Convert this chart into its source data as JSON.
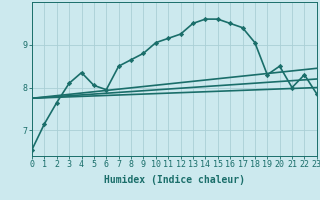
{
  "xlabel": "Humidex (Indice chaleur)",
  "background_color": "#cce9ee",
  "grid_color": "#aacfd6",
  "line_color": "#1a6e6a",
  "x_ticks": [
    0,
    1,
    2,
    3,
    4,
    5,
    6,
    7,
    8,
    9,
    10,
    11,
    12,
    13,
    14,
    15,
    16,
    17,
    18,
    19,
    20,
    21,
    22,
    23
  ],
  "y_ticks": [
    7,
    8,
    9
  ],
  "ylim": [
    6.4,
    10.0
  ],
  "xlim": [
    0,
    23
  ],
  "series": [
    {
      "x": [
        0,
        1,
        2,
        3,
        4,
        5,
        6,
        7,
        8,
        9,
        10,
        11,
        12,
        13,
        14,
        15,
        16,
        17,
        18,
        19,
        20,
        21,
        22,
        23
      ],
      "y": [
        6.55,
        7.15,
        7.65,
        8.1,
        8.35,
        8.05,
        7.95,
        8.5,
        8.65,
        8.8,
        9.05,
        9.15,
        9.25,
        9.5,
        9.6,
        9.6,
        9.5,
        9.4,
        9.05,
        8.3,
        8.5,
        8.0,
        8.3,
        7.85
      ],
      "has_markers": true,
      "linewidth": 1.2
    },
    {
      "x": [
        0,
        23
      ],
      "y": [
        7.75,
        8.0
      ],
      "has_markers": false,
      "linewidth": 1.2
    },
    {
      "x": [
        0,
        23
      ],
      "y": [
        7.75,
        8.2
      ],
      "has_markers": false,
      "linewidth": 1.2
    },
    {
      "x": [
        0,
        23
      ],
      "y": [
        7.75,
        8.45
      ],
      "has_markers": false,
      "linewidth": 1.2
    }
  ],
  "font_color": "#1a6e6a",
  "tick_fontsize": 6,
  "label_fontsize": 7
}
